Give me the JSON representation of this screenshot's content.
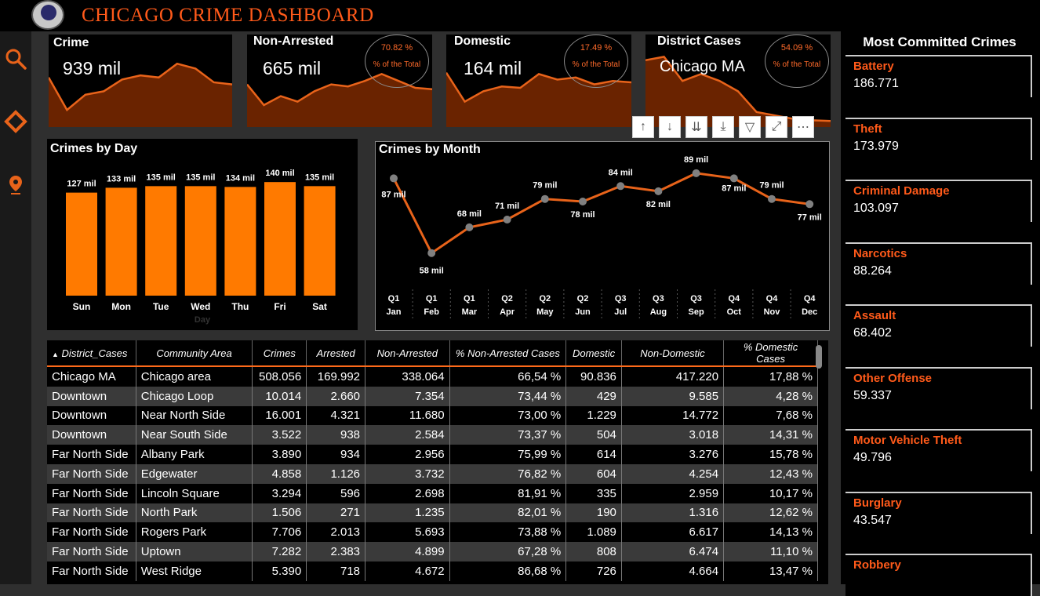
{
  "title": "CHICAGO CRIME DASHBOARD",
  "nav": {
    "icons": [
      "search-icon",
      "diamond-icon",
      "map-pin-icon"
    ]
  },
  "kpis": [
    {
      "label": "Crime",
      "value": "939 mil"
    },
    {
      "label": "Non-Arrested",
      "value": "665 mil",
      "pct": "70.82 %",
      "pct_label": "% of the Total"
    },
    {
      "label": "Domestic",
      "value": "164 mil",
      "pct": "17.49 %",
      "pct_label": "% of the Total"
    },
    {
      "label": "District Cases",
      "value": "Chicago MA",
      "pct": "54.09 %",
      "pct_label": "% of the Total"
    }
  ],
  "day_chart": {
    "title": "Crimes by Day",
    "x_axis_label": "Day"
  },
  "month_chart": {
    "title": "Crimes by Month"
  },
  "visual_toolbar": {
    "icons": [
      "sort-asc-icon",
      "sort-desc-icon",
      "expand-all-icon",
      "drill-down-icon",
      "filter-icon",
      "focus-mode-icon",
      "more-options-icon"
    ]
  },
  "table": {
    "headers": [
      "District_Cases",
      "Community Area",
      "Crimes",
      "Arrested",
      "Non-Arrested",
      "% Non-Arrested Cases",
      "Domestic",
      "Non-Domestic",
      "% Domestic Cases"
    ],
    "rows": [
      [
        "Chicago MA",
        "Chicago area",
        "508.056",
        "169.992",
        "338.064",
        "66,54 %",
        "90.836",
        "417.220",
        "17,88 %"
      ],
      [
        "Downtown",
        "Chicago Loop",
        "10.014",
        "2.660",
        "7.354",
        "73,44 %",
        "429",
        "9.585",
        "4,28 %"
      ],
      [
        "Downtown",
        "Near North Side",
        "16.001",
        "4.321",
        "11.680",
        "73,00 %",
        "1.229",
        "14.772",
        "7,68 %"
      ],
      [
        "Downtown",
        "Near South Side",
        "3.522",
        "938",
        "2.584",
        "73,37 %",
        "504",
        "3.018",
        "14,31 %"
      ],
      [
        "Far North Side",
        "Albany Park",
        "3.890",
        "934",
        "2.956",
        "75,99 %",
        "614",
        "3.276",
        "15,78 %"
      ],
      [
        "Far North Side",
        "Edgewater",
        "4.858",
        "1.126",
        "3.732",
        "76,82 %",
        "604",
        "4.254",
        "12,43 %"
      ],
      [
        "Far North Side",
        "Lincoln Square",
        "3.294",
        "596",
        "2.698",
        "81,91 %",
        "335",
        "2.959",
        "10,17 %"
      ],
      [
        "Far North Side",
        "North Park",
        "1.506",
        "271",
        "1.235",
        "82,01 %",
        "190",
        "1.316",
        "12,62 %"
      ],
      [
        "Far North Side",
        "Rogers Park",
        "7.706",
        "2.013",
        "5.693",
        "73,88 %",
        "1.089",
        "6.617",
        "14,13 %"
      ],
      [
        "Far North Side",
        "Uptown",
        "7.282",
        "2.383",
        "4.899",
        "67,28 %",
        "808",
        "6.474",
        "11,10 %"
      ],
      [
        "Far North Side",
        "West Ridge",
        "5.390",
        "718",
        "4.672",
        "86,68 %",
        "726",
        "4.664",
        "13,47 %"
      ]
    ]
  },
  "most_committed": {
    "title": "Most Committed Crimes",
    "items": [
      {
        "name": "Battery",
        "value": "186.771"
      },
      {
        "name": "Theft",
        "value": "173.979"
      },
      {
        "name": "Criminal Damage",
        "value": "103.097"
      },
      {
        "name": "Narcotics",
        "value": "88.264"
      },
      {
        "name": "Assault",
        "value": "68.402"
      },
      {
        "name": "Other Offense",
        "value": "59.337"
      },
      {
        "name": "Motor Vehicle Theft",
        "value": "49.796"
      },
      {
        "name": "Burglary",
        "value": "43.547"
      },
      {
        "name": "Robbery",
        "value": ""
      }
    ]
  },
  "colors": {
    "accent": "#ff7a00",
    "title": "#ff5a1a",
    "area": "#6a2300",
    "line": "#e8631a"
  },
  "chart_data": [
    {
      "type": "bar",
      "title": "Crimes by Day",
      "xlabel": "Day",
      "ylabel": "",
      "categories": [
        "Sun",
        "Mon",
        "Tue",
        "Wed",
        "Thu",
        "Fri",
        "Sat"
      ],
      "values": [
        127,
        133,
        135,
        135,
        134,
        140,
        135
      ],
      "labels": [
        "127 mil",
        "133 mil",
        "135 mil",
        "135 mil",
        "134 mil",
        "140 mil",
        "135 mil"
      ],
      "ylim": [
        0,
        145
      ],
      "color": "#ff7a00"
    },
    {
      "type": "line",
      "title": "Crimes by Month",
      "quarters": [
        "Q1",
        "Q1",
        "Q1",
        "Q2",
        "Q2",
        "Q2",
        "Q3",
        "Q3",
        "Q3",
        "Q4",
        "Q4",
        "Q4"
      ],
      "categories": [
        "Jan",
        "Feb",
        "Mar",
        "Apr",
        "May",
        "Jun",
        "Jul",
        "Aug",
        "Sep",
        "Oct",
        "Nov",
        "Dec"
      ],
      "values": [
        87,
        58,
        68,
        71,
        79,
        78,
        84,
        82,
        89,
        87,
        79,
        77
      ],
      "labels": [
        "87 mil",
        "58 mil",
        "68 mil",
        "71 mil",
        "79 mil",
        "78 mil",
        "84 mil",
        "82 mil",
        "89 mil",
        "87 mil",
        "79 mil",
        "77 mil"
      ],
      "ylim": [
        50,
        92
      ],
      "color": "#e8631a"
    },
    {
      "type": "area",
      "title": "Crime",
      "values": [
        65,
        18,
        40,
        45,
        62,
        68,
        65,
        85,
        78,
        58,
        55
      ]
    },
    {
      "type": "area",
      "title": "Non-Arrested",
      "values": [
        55,
        25,
        38,
        30,
        45,
        55,
        52,
        60,
        70,
        60,
        50,
        48
      ]
    },
    {
      "type": "area",
      "title": "Domestic",
      "values": [
        72,
        30,
        45,
        52,
        50,
        70,
        62,
        65,
        55,
        60,
        58
      ]
    },
    {
      "type": "area",
      "title": "District Cases",
      "values": [
        90,
        95,
        60,
        70,
        60,
        45,
        15,
        10,
        5,
        3,
        2
      ]
    }
  ]
}
